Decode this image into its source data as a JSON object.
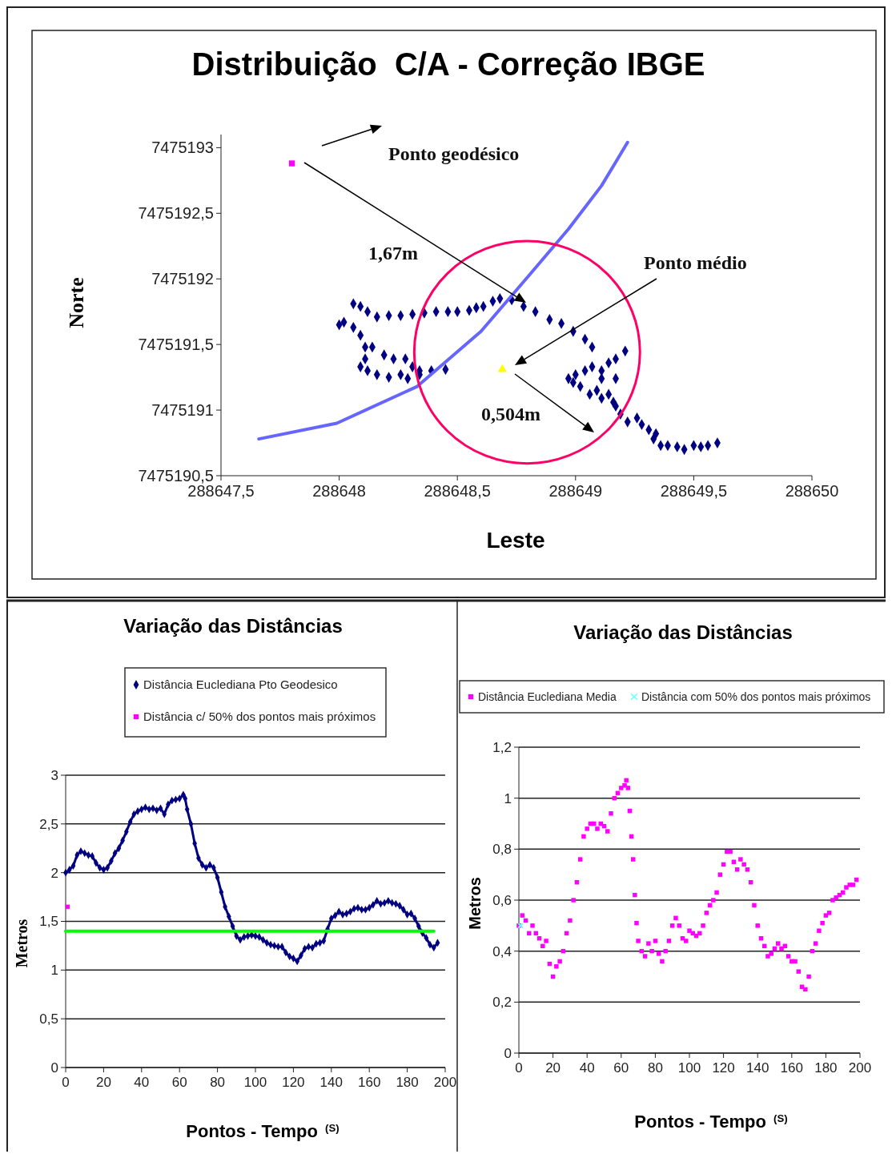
{
  "chart_data": [
    {
      "type": "scatter",
      "title": "Distribuição  C/A - Correção IBGE",
      "xlabel": "Leste",
      "ylabel": "Norte",
      "xlim": [
        288647.5,
        288650
      ],
      "ylim": [
        7475190.5,
        7475193.1
      ],
      "xticks": [
        {
          "value": 288647.5,
          "label": "288647,5"
        },
        288648,
        {
          "value": 288648.5,
          "label": "288648,5"
        },
        288649,
        {
          "value": 288649.5,
          "label": "288649,5"
        },
        288650
      ],
      "yticks": [
        {
          "value": 7475190.5,
          "label": "7475190,5"
        },
        7475191,
        {
          "value": 7475191.5,
          "label": "7475191,5"
        },
        7475192,
        {
          "value": 7475192.5,
          "label": "7475192,5"
        },
        7475193
      ],
      "annotations": [
        "Ponto geodésico",
        "1,67m",
        "Ponto médio",
        "0,504m"
      ],
      "series": [
        {
          "marker": "diamond",
          "color": "#000080",
          "x": [
            288649.6,
            288649.56,
            288649.53,
            288649.5,
            288649.46,
            288649.43,
            288649.39,
            288649.36,
            288649.33,
            288649.34,
            288649.31,
            288649.28,
            288649.26,
            288649.22,
            288649.19,
            288649.17,
            288649.16,
            288649.14,
            288649.11,
            288649.09,
            288649.06,
            288649.02,
            288648.99,
            288648.97,
            288649.0,
            288649.04,
            288649.07,
            288649.11,
            288649.14,
            288649.17,
            288649.21,
            288649.17,
            288649.11,
            288649.07,
            288649.04,
            288648.99,
            288648.94,
            288648.89,
            288648.83,
            288648.78,
            288648.73,
            288648.68,
            288648.65,
            288648.61,
            288648.58,
            288648.55,
            288648.5,
            288648.46,
            288648.41,
            288648.36,
            288648.31,
            288648.26,
            288648.21,
            288648.16,
            288648.12,
            288648.09,
            288648.06,
            288648.02,
            288648.0,
            288648.06,
            288648.09,
            288648.11,
            288648.11,
            288648.09,
            288648.14,
            288648.19,
            288648.23,
            288648.28,
            288648.31,
            288648.34,
            288648.39,
            288648.45,
            288648.26,
            288648.21,
            288648.16,
            288648.12,
            288648.29,
            288648.34
          ],
          "values": [
            7475190.75,
            7475190.73,
            7475190.72,
            7475190.73,
            7475190.7,
            7475190.72,
            7475190.73,
            7475190.73,
            7475190.78,
            7475190.82,
            7475190.85,
            7475190.89,
            7475190.94,
            7475190.91,
            7475190.97,
            7475191.03,
            7475191.06,
            7475191.12,
            7475191.09,
            7475191.15,
            7475191.12,
            7475191.18,
            7475191.21,
            7475191.24,
            7475191.27,
            7475191.3,
            7475191.33,
            7475191.3,
            7475191.36,
            7475191.39,
            7475191.45,
            7475191.24,
            7475191.24,
            7475191.48,
            7475191.54,
            7475191.6,
            7475191.66,
            7475191.69,
            7475191.75,
            7475191.79,
            7475191.84,
            7475191.85,
            7475191.83,
            7475191.79,
            7475191.78,
            7475191.76,
            7475191.75,
            7475191.75,
            7475191.75,
            7475191.74,
            7475191.73,
            7475191.72,
            7475191.72,
            7475191.71,
            7475191.75,
            7475191.79,
            7475191.81,
            7475191.67,
            7475191.65,
            7475191.63,
            7475191.57,
            7475191.48,
            7475191.39,
            7475191.33,
            7475191.48,
            7475191.42,
            7475191.39,
            7475191.39,
            7475191.33,
            7475191.3,
            7475191.3,
            7475191.31,
            7475191.27,
            7475191.25,
            7475191.27,
            7475191.3,
            7475191.24,
            7475191.27
          ]
        },
        {
          "marker": "square",
          "color": "#ff00ff",
          "x": [
            288647.8
          ],
          "values": [
            7475192.88
          ]
        },
        {
          "marker": "triangle",
          "color": "#ffff00",
          "x": [
            288648.69
          ],
          "values": [
            7475191.31
          ]
        },
        {
          "type": "line",
          "marker": "none",
          "color": "#6666ff",
          "x": [
            288647.66,
            288647.99,
            288648.33,
            288648.6,
            288648.8,
            288648.97,
            288649.11,
            288649.22
          ],
          "values": [
            7475190.78,
            7475190.9,
            7475191.18,
            7475191.6,
            7475192.02,
            7475192.38,
            7475192.71,
            7475193.04
          ]
        }
      ]
    },
    {
      "type": "line",
      "title": "Variação das Distâncias",
      "xlabel": "Pontos - Tempo $^{(S)}$",
      "ylabel": "Metros",
      "legend": "top",
      "grid": "y",
      "xlim": [
        0,
        200
      ],
      "ylim": [
        0,
        3
      ],
      "xticks": [
        0,
        20,
        40,
        60,
        80,
        100,
        120,
        140,
        160,
        180,
        200
      ],
      "yticks": [
        0,
        {
          "value": 0.5,
          "label": "0,5"
        },
        1,
        {
          "value": 1.5,
          "label": "1,5"
        },
        2,
        {
          "value": 2.5,
          "label": "2,5"
        },
        3
      ],
      "series": [
        {
          "name": "Distância Euclediana Pto Geodesico",
          "marker": "diamond",
          "color": "#000080",
          "x": [
            0,
            2,
            4,
            6,
            8,
            10,
            12,
            14,
            16,
            18,
            20,
            22,
            24,
            26,
            28,
            30,
            32,
            34,
            36,
            38,
            40,
            42,
            44,
            46,
            48,
            50,
            52,
            54,
            56,
            58,
            60,
            62,
            63,
            64,
            66,
            68,
            70,
            72,
            74,
            76,
            78,
            80,
            82,
            84,
            86,
            88,
            90,
            92,
            94,
            96,
            98,
            100,
            102,
            104,
            106,
            108,
            110,
            112,
            114,
            116,
            118,
            120,
            122,
            124,
            126,
            128,
            130,
            132,
            134,
            136,
            138,
            140,
            142,
            144,
            146,
            148,
            150,
            152,
            154,
            156,
            158,
            160,
            162,
            164,
            166,
            168,
            170,
            172,
            174,
            176,
            178,
            180,
            182,
            184,
            186,
            188,
            190,
            192,
            194,
            196
          ],
          "values": [
            2.0,
            2.03,
            2.07,
            2.18,
            2.22,
            2.2,
            2.18,
            2.17,
            2.1,
            2.05,
            2.03,
            2.05,
            2.12,
            2.2,
            2.25,
            2.33,
            2.42,
            2.52,
            2.6,
            2.63,
            2.65,
            2.67,
            2.65,
            2.66,
            2.64,
            2.66,
            2.6,
            2.7,
            2.74,
            2.75,
            2.76,
            2.8,
            2.76,
            2.65,
            2.5,
            2.3,
            2.15,
            2.08,
            2.05,
            2.08,
            2.05,
            1.95,
            1.8,
            1.65,
            1.55,
            1.45,
            1.35,
            1.31,
            1.34,
            1.35,
            1.36,
            1.35,
            1.34,
            1.31,
            1.28,
            1.26,
            1.25,
            1.24,
            1.24,
            1.18,
            1.14,
            1.12,
            1.09,
            1.15,
            1.22,
            1.24,
            1.23,
            1.27,
            1.28,
            1.3,
            1.42,
            1.53,
            1.56,
            1.6,
            1.57,
            1.58,
            1.6,
            1.63,
            1.64,
            1.62,
            1.62,
            1.64,
            1.67,
            1.71,
            1.68,
            1.69,
            1.71,
            1.69,
            1.68,
            1.66,
            1.62,
            1.57,
            1.58,
            1.53,
            1.45,
            1.38,
            1.33,
            1.26,
            1.23,
            1.28
          ]
        },
        {
          "name": "Distância c/ 50% dos pontos mais próximos",
          "type": "scatter",
          "marker": "square",
          "color": "#ff00ff",
          "x": [
            1
          ],
          "values": [
            1.65
          ]
        },
        {
          "marker": "none",
          "color": "#00ff00",
          "x": [
            0,
            194
          ],
          "values": [
            1.4,
            1.4
          ]
        }
      ]
    },
    {
      "type": "scatter",
      "title": "Variação das Distâncias",
      "xlabel": "Pontos - Tempo $^{(S)}$",
      "ylabel": "Metros",
      "legend": "top",
      "grid": "y",
      "xlim": [
        0,
        200
      ],
      "ylim": [
        0,
        1.2
      ],
      "xticks": [
        0,
        20,
        40,
        60,
        80,
        100,
        120,
        140,
        160,
        180,
        200
      ],
      "yticks": [
        0,
        {
          "value": 0.2,
          "label": "0,2"
        },
        {
          "value": 0.4,
          "label": "0,4"
        },
        {
          "value": 0.6,
          "label": "0,6"
        },
        {
          "value": 0.8,
          "label": "0,8"
        },
        1,
        {
          "value": 1.2,
          "label": "1,2"
        }
      ],
      "series": [
        {
          "name": "Distância Euclediana Media",
          "marker": "square",
          "color": "#ff00ff",
          "x": [
            0,
            2,
            4,
            6,
            8,
            10,
            12,
            14,
            16,
            18,
            20,
            22,
            24,
            26,
            28,
            30,
            32,
            34,
            36,
            38,
            40,
            42,
            44,
            46,
            48,
            50,
            52,
            54,
            56,
            58,
            60,
            62,
            63,
            64,
            65,
            66,
            67,
            68,
            69,
            70,
            72,
            74,
            76,
            78,
            80,
            82,
            84,
            86,
            88,
            90,
            92,
            94,
            96,
            98,
            100,
            102,
            104,
            106,
            108,
            110,
            112,
            114,
            116,
            118,
            120,
            122,
            124,
            126,
            128,
            130,
            132,
            134,
            136,
            138,
            140,
            142,
            144,
            146,
            148,
            150,
            152,
            154,
            156,
            158,
            160,
            162,
            164,
            166,
            168,
            170,
            172,
            174,
            176,
            178,
            180,
            182,
            184,
            186,
            188,
            190,
            192,
            194,
            196,
            198
          ],
          "values": [
            0.5,
            0.54,
            0.52,
            0.47,
            0.5,
            0.47,
            0.45,
            0.42,
            0.44,
            0.35,
            0.3,
            0.34,
            0.36,
            0.4,
            0.47,
            0.52,
            0.6,
            0.67,
            0.76,
            0.85,
            0.88,
            0.9,
            0.9,
            0.88,
            0.9,
            0.89,
            0.87,
            0.94,
            1.0,
            1.02,
            1.04,
            1.05,
            1.07,
            1.04,
            0.95,
            0.85,
            0.76,
            0.62,
            0.51,
            0.44,
            0.4,
            0.38,
            0.43,
            0.4,
            0.44,
            0.39,
            0.36,
            0.4,
            0.44,
            0.5,
            0.53,
            0.5,
            0.45,
            0.44,
            0.48,
            0.47,
            0.46,
            0.47,
            0.5,
            0.55,
            0.58,
            0.6,
            0.63,
            0.7,
            0.74,
            0.79,
            0.79,
            0.75,
            0.72,
            0.76,
            0.74,
            0.72,
            0.67,
            0.58,
            0.5,
            0.45,
            0.42,
            0.38,
            0.39,
            0.41,
            0.43,
            0.41,
            0.42,
            0.38,
            0.36,
            0.36,
            0.32,
            0.26,
            0.25,
            0.3,
            0.4,
            0.43,
            0.48,
            0.51,
            0.54,
            0.55,
            0.6,
            0.61,
            0.62,
            0.63,
            0.65,
            0.66,
            0.66,
            0.68
          ]
        },
        {
          "name": "Distância com 50% dos pontos mais próximos",
          "marker": "cross",
          "color": "#66ffff",
          "x": [
            1
          ],
          "values": [
            0.5
          ]
        }
      ]
    }
  ]
}
